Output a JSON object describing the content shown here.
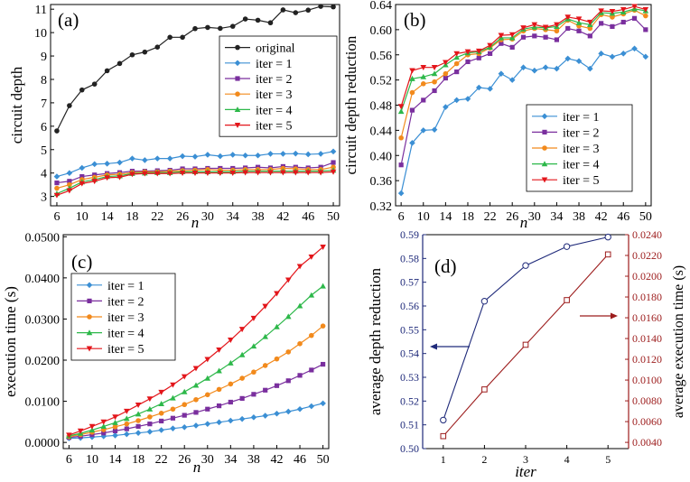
{
  "chart_data": [
    {
      "type": "line",
      "panel": "(a)",
      "xlabel": "n",
      "ylabel": "circuit depth",
      "xlim": [
        5,
        51
      ],
      "ylim": [
        2.6,
        11.2
      ],
      "xticks": [
        6,
        10,
        14,
        18,
        22,
        26,
        30,
        34,
        38,
        42,
        46,
        50
      ],
      "yticks": [
        3,
        4,
        5,
        6,
        7,
        8,
        9,
        10,
        11
      ],
      "legend_position": "right-middle",
      "x": [
        6,
        8,
        10,
        12,
        14,
        16,
        18,
        20,
        22,
        24,
        26,
        28,
        30,
        32,
        34,
        36,
        38,
        40,
        42,
        44,
        46,
        48,
        50
      ],
      "series": [
        {
          "name": "original",
          "color": "#222222",
          "marker": "circle",
          "values": [
            5.8,
            6.88,
            7.55,
            7.8,
            8.37,
            8.68,
            9.05,
            9.17,
            9.38,
            9.8,
            9.8,
            10.17,
            10.22,
            10.18,
            10.27,
            10.58,
            10.53,
            10.42,
            10.97,
            10.85,
            10.96,
            11.12,
            11.1
          ]
        },
        {
          "name": "iter = 1",
          "color": "#3b8fd4",
          "marker": "diamond",
          "values": [
            3.85,
            4.0,
            4.22,
            4.38,
            4.4,
            4.45,
            4.62,
            4.55,
            4.62,
            4.62,
            4.72,
            4.7,
            4.78,
            4.72,
            4.78,
            4.75,
            4.75,
            4.82,
            4.82,
            4.83,
            4.8,
            4.82,
            4.92
          ]
        },
        {
          "name": "iter = 2",
          "color": "#7a2f9e",
          "marker": "square",
          "values": [
            3.58,
            3.65,
            3.85,
            3.92,
            3.98,
            4.02,
            4.08,
            4.08,
            4.1,
            4.12,
            4.18,
            4.18,
            4.2,
            4.2,
            4.2,
            4.22,
            4.25,
            4.22,
            4.28,
            4.25,
            4.22,
            4.25,
            4.45
          ]
        },
        {
          "name": "iter = 3",
          "color": "#f28a1c",
          "marker": "circle",
          "values": [
            3.35,
            3.5,
            3.72,
            3.82,
            3.92,
            3.95,
            4.02,
            4.05,
            4.05,
            4.08,
            4.1,
            4.12,
            4.15,
            4.12,
            4.12,
            4.15,
            4.15,
            4.15,
            4.2,
            4.18,
            4.15,
            4.15,
            4.25
          ]
        },
        {
          "name": "iter = 4",
          "color": "#2db84a",
          "marker": "triangle-up",
          "values": [
            3.12,
            3.35,
            3.62,
            3.72,
            3.85,
            3.88,
            3.98,
            4.0,
            4.02,
            4.02,
            4.05,
            4.05,
            4.05,
            4.05,
            4.05,
            4.08,
            4.08,
            4.08,
            4.08,
            4.08,
            4.08,
            4.08,
            4.12
          ]
        },
        {
          "name": "iter = 5",
          "color": "#e3161b",
          "marker": "triangle-down",
          "values": [
            3.05,
            3.25,
            3.55,
            3.65,
            3.8,
            3.82,
            3.95,
            3.98,
            3.98,
            3.98,
            4.0,
            4.0,
            4.0,
            4.0,
            4.0,
            4.02,
            4.02,
            4.02,
            4.02,
            4.02,
            4.02,
            4.02,
            4.05
          ]
        }
      ]
    },
    {
      "type": "line",
      "panel": "(b)",
      "xlabel": "n",
      "ylabel": "circuit depth reduction",
      "xlim": [
        5,
        51
      ],
      "ylim": [
        0.32,
        0.64
      ],
      "xticks": [
        6,
        10,
        14,
        18,
        22,
        26,
        30,
        34,
        38,
        42,
        46,
        50
      ],
      "yticks": [
        "0.32",
        "0.36",
        "0.40",
        "0.44",
        "0.48",
        "0.52",
        "0.56",
        "0.60",
        "0.64"
      ],
      "legend_position": "bottom-right",
      "x": [
        6,
        8,
        10,
        12,
        14,
        16,
        18,
        20,
        22,
        24,
        26,
        28,
        30,
        32,
        34,
        36,
        38,
        40,
        42,
        44,
        46,
        48,
        50
      ],
      "series": [
        {
          "name": "iter = 1",
          "color": "#3b8fd4",
          "marker": "diamond",
          "values": [
            0.34,
            0.42,
            0.44,
            0.441,
            0.477,
            0.488,
            0.49,
            0.508,
            0.506,
            0.53,
            0.52,
            0.54,
            0.535,
            0.54,
            0.538,
            0.554,
            0.55,
            0.538,
            0.562,
            0.557,
            0.562,
            0.57,
            0.557
          ]
        },
        {
          "name": "iter = 2",
          "color": "#7a2f9e",
          "marker": "square",
          "values": [
            0.385,
            0.472,
            0.488,
            0.503,
            0.523,
            0.533,
            0.549,
            0.555,
            0.562,
            0.578,
            0.572,
            0.588,
            0.59,
            0.588,
            0.584,
            0.602,
            0.598,
            0.59,
            0.61,
            0.605,
            0.612,
            0.618,
            0.6
          ]
        },
        {
          "name": "iter = 3",
          "color": "#f28a1c",
          "marker": "circle",
          "values": [
            0.428,
            0.5,
            0.514,
            0.517,
            0.53,
            0.546,
            0.56,
            0.562,
            0.571,
            0.584,
            0.585,
            0.598,
            0.602,
            0.6,
            0.598,
            0.615,
            0.606,
            0.602,
            0.624,
            0.62,
            0.625,
            0.631,
            0.622
          ]
        },
        {
          "name": "iter = 4",
          "color": "#2db84a",
          "marker": "triangle-up",
          "values": [
            0.47,
            0.522,
            0.525,
            0.53,
            0.544,
            0.556,
            0.563,
            0.565,
            0.572,
            0.587,
            0.587,
            0.601,
            0.604,
            0.603,
            0.605,
            0.617,
            0.611,
            0.608,
            0.627,
            0.626,
            0.628,
            0.633,
            0.63
          ]
        },
        {
          "name": "iter = 5",
          "color": "#e3161b",
          "marker": "triangle-down",
          "values": [
            0.478,
            0.535,
            0.54,
            0.54,
            0.548,
            0.562,
            0.565,
            0.566,
            0.575,
            0.591,
            0.592,
            0.603,
            0.608,
            0.604,
            0.608,
            0.62,
            0.617,
            0.612,
            0.63,
            0.629,
            0.632,
            0.637,
            0.632
          ]
        }
      ]
    },
    {
      "type": "line",
      "panel": "(c)",
      "xlabel": "n",
      "ylabel": "execution time (s)",
      "xlim": [
        5,
        51
      ],
      "ylim": [
        -0.0015,
        0.0505
      ],
      "xticks": [
        6,
        10,
        14,
        18,
        22,
        26,
        30,
        34,
        38,
        42,
        46,
        50
      ],
      "yticks": [
        "0.0000",
        "0.0100",
        "0.0200",
        "0.0300",
        "0.0400",
        "0.0500"
      ],
      "legend_position": "top-left",
      "x": [
        6,
        8,
        10,
        12,
        14,
        16,
        18,
        20,
        22,
        24,
        26,
        28,
        30,
        32,
        34,
        36,
        38,
        40,
        42,
        44,
        46,
        48,
        50
      ],
      "series": [
        {
          "name": "iter = 1",
          "color": "#3b8fd4",
          "marker": "diamond",
          "values": [
            0.001,
            0.0011,
            0.0013,
            0.0015,
            0.0017,
            0.002,
            0.0023,
            0.0026,
            0.003,
            0.0034,
            0.0037,
            0.0041,
            0.0045,
            0.0049,
            0.0053,
            0.0057,
            0.0061,
            0.0065,
            0.007,
            0.0075,
            0.0081,
            0.0088,
            0.0095
          ]
        },
        {
          "name": "iter = 2",
          "color": "#7a2f9e",
          "marker": "square",
          "values": [
            0.0012,
            0.0015,
            0.0019,
            0.0023,
            0.0028,
            0.0033,
            0.0039,
            0.0045,
            0.0052,
            0.0059,
            0.0066,
            0.0073,
            0.0081,
            0.0089,
            0.0098,
            0.0107,
            0.0117,
            0.0127,
            0.0138,
            0.015,
            0.0163,
            0.0176,
            0.019
          ]
        },
        {
          "name": "iter = 3",
          "color": "#f28a1c",
          "marker": "circle",
          "values": [
            0.0014,
            0.0019,
            0.0025,
            0.0031,
            0.0038,
            0.0045,
            0.0053,
            0.0062,
            0.0071,
            0.0081,
            0.0092,
            0.0104,
            0.0116,
            0.0129,
            0.0142,
            0.0156,
            0.0171,
            0.0187,
            0.0203,
            0.022,
            0.024,
            0.026,
            0.0283
          ]
        },
        {
          "name": "iter = 4",
          "color": "#2db84a",
          "marker": "triangle-up",
          "values": [
            0.0016,
            0.0022,
            0.003,
            0.0039,
            0.0048,
            0.0058,
            0.0069,
            0.0081,
            0.0094,
            0.0108,
            0.0123,
            0.0139,
            0.0156,
            0.0174,
            0.0193,
            0.0213,
            0.0234,
            0.0257,
            0.0281,
            0.0306,
            0.0332,
            0.0358,
            0.038
          ]
        },
        {
          "name": "iter = 5",
          "color": "#e3161b",
          "marker": "triangle-down",
          "values": [
            0.0018,
            0.0028,
            0.0039,
            0.005,
            0.0062,
            0.0076,
            0.0091,
            0.0106,
            0.0122,
            0.014,
            0.016,
            0.018,
            0.0202,
            0.0225,
            0.0249,
            0.0275,
            0.0302,
            0.0331,
            0.0362,
            0.0395,
            0.0428,
            0.0451,
            0.0475
          ]
        }
      ]
    },
    {
      "type": "line",
      "panel": "(d)",
      "xlabel": "iter",
      "xlim": [
        0.5,
        5.5
      ],
      "xticks": [
        1,
        2,
        3,
        4,
        5
      ],
      "y_left": {
        "label": "average depth reduction",
        "ylim": [
          0.5,
          0.59
        ],
        "ticks": [
          "0.50",
          "0.51",
          "0.52",
          "0.53",
          "0.54",
          "0.55",
          "0.56",
          "0.57",
          "0.58",
          "0.59"
        ],
        "color": "#1f2a7a"
      },
      "y_right": {
        "label": "average execution time (s)",
        "ylim": [
          0.0034,
          0.024
        ],
        "ticks": [
          "0.0040",
          "0.0060",
          "0.0080",
          "0.0100",
          "0.0120",
          "0.0140",
          "0.0160",
          "0.0180",
          "0.0200",
          "0.0220",
          "0.0240"
        ],
        "color": "#9c1c1c"
      },
      "x": [
        1,
        2,
        3,
        4,
        5
      ],
      "series": [
        {
          "name": "average depth reduction",
          "axis": "left",
          "color": "#1f2a7a",
          "marker": "open-circle",
          "values": [
            0.512,
            0.562,
            0.577,
            0.585,
            0.589
          ]
        },
        {
          "name": "average execution time (s)",
          "axis": "right",
          "color": "#9c1c1c",
          "marker": "open-square",
          "values": [
            0.0046,
            0.0091,
            0.0134,
            0.0177,
            0.0221
          ]
        }
      ]
    }
  ]
}
